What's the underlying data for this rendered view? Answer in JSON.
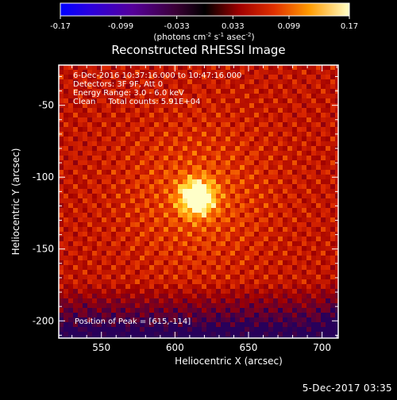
{
  "chart_data": {
    "type": "heatmap",
    "title": "Reconstructed RHESSI Image",
    "xlabel": "Heliocentric X (arcsec)",
    "ylabel": "Heliocentric Y (arcsec)",
    "xlim": [
      521,
      711
    ],
    "ylim": [
      -212,
      -22
    ],
    "xticks": [
      550,
      600,
      650,
      700
    ],
    "yticks": [
      -50,
      -100,
      -150,
      -200
    ],
    "colorbar": {
      "min": -0.17,
      "max": 0.17,
      "ticks": [
        "-0.17",
        "-0.099",
        "-0.033",
        "0.033",
        "0.099",
        "0.17"
      ],
      "label_parts": [
        "(photons cm",
        "-2",
        " s",
        "-1",
        " asec",
        "-2",
        ")"
      ]
    },
    "annotations": [
      "6-Dec-2016 10:37:16.000 to 10:47:16.000",
      "Detectors: 3F 9F, Att 0",
      "Energy Range: 3.0 - 6.0 keV",
      "Clean     Total counts: 5.91E+04"
    ],
    "peak_label": "Position of Peak = [615,-114]",
    "peak": [
      615,
      -114
    ],
    "peak_value": 0.17
  },
  "footer_date": "5-Dec-2017 03:35"
}
